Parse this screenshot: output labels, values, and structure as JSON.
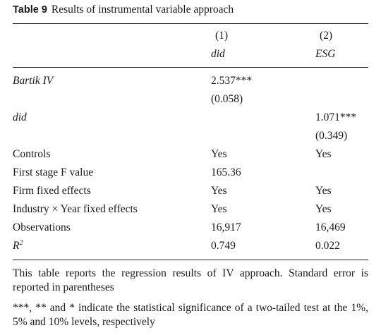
{
  "caption": {
    "label": "Table 9",
    "title": "Results of instrumental variable approach"
  },
  "columns": [
    {
      "number": "(1)",
      "dep_var": "did"
    },
    {
      "number": "(2)",
      "dep_var": "ESG"
    }
  ],
  "rows": {
    "bartik": {
      "label": "Bartik IV",
      "c1_coef": "2.537***",
      "c1_se": "(0.058)"
    },
    "did": {
      "label": "did",
      "c2_coef": "1.071***",
      "c2_se": "(0.349)"
    },
    "controls": {
      "label": "Controls",
      "c1": "Yes",
      "c2": "Yes"
    },
    "fstat": {
      "label": "First stage F value",
      "c1": "165.36"
    },
    "firm_fe": {
      "label": "Firm fixed effects",
      "c1": "Yes",
      "c2": "Yes"
    },
    "ind_year_fe": {
      "label_a": "Industry",
      "label_times": "×",
      "label_b": "Year fixed effects",
      "c1": "Yes",
      "c2": "Yes"
    },
    "obs": {
      "label": "Observations",
      "c1": "16,917",
      "c2": "16,469"
    },
    "r2": {
      "label": "R",
      "label_sup": "2",
      "c1": "0.749",
      "c2": "0.022"
    }
  },
  "notes": {
    "note1": "This table reports the regression results of IV approach. Standard error is reported in parentheses",
    "note2": "***, ** and * indicate the statistical significance of a two-tailed test at the 1%, 5% and 10% levels, respectively"
  }
}
